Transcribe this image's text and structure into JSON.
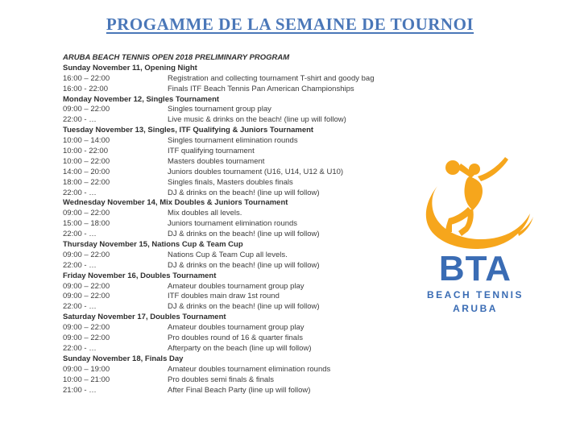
{
  "title": "PROGAMME DE LA SEMAINE DE TOURNOI",
  "schedule": {
    "program_heading": "ARUBA BEACH TENNIS OPEN 2018 PRELIMINARY PROGRAM",
    "days": [
      {
        "header": "Sunday November 11, Opening Night",
        "events": [
          {
            "time": "16:00 – 22:00",
            "description": "Registration and collecting tournament T-shirt and goody bag"
          },
          {
            "time": "16:00 - 22:00",
            "description": "Finals ITF Beach Tennis Pan American Championships"
          }
        ]
      },
      {
        "header": "Monday November 12, Singles Tournament",
        "events": [
          {
            "time": "09:00 – 22:00",
            "description": "Singles tournament group play"
          },
          {
            "time": "22:00 - …",
            "description": "Live music & drinks on the beach! (line up will follow)"
          }
        ]
      },
      {
        "header": "Tuesday November 13, Singles, ITF Qualifying & Juniors Tournament",
        "events": [
          {
            "time": "10:00 – 14:00",
            "description": "Singles tournament elimination rounds"
          },
          {
            "time": "10:00 - 22:00",
            "description": "ITF qualifying tournament"
          },
          {
            "time": "10:00 – 22:00",
            "description": "Masters doubles tournament"
          },
          {
            "time": "14:00 – 20:00",
            "description": "Juniors doubles tournament (U16, U14, U12 & U10)"
          },
          {
            "time": "18:00 – 22:00",
            "description": "Singles finals, Masters doubles finals"
          },
          {
            "time": "22:00 - …",
            "description": "DJ & drinks on the beach! (line up will follow)"
          }
        ]
      },
      {
        "header": "Wednesday November 14, Mix Doubles & Juniors Tournament",
        "events": [
          {
            "time": "09:00 – 22:00",
            "description": "Mix doubles all levels."
          },
          {
            "time": "15:00 – 18:00",
            "description": "Juniors tournament elimination rounds"
          },
          {
            "time": "22:00 - …",
            "description": "DJ & drinks on the beach! (line up will follow)"
          }
        ]
      },
      {
        "header": "Thursday November 15, Nations Cup & Team Cup",
        "events": [
          {
            "time": "09:00 – 22:00",
            "description": "Nations Cup & Team Cup all levels."
          },
          {
            "time": "22:00 - …",
            "description": "DJ & drinks on the beach! (line up will follow)"
          }
        ]
      },
      {
        "header": "Friday November 16, Doubles Tournament",
        "events": [
          {
            "time": "09:00 – 22:00",
            "description": "Amateur doubles tournament group play"
          },
          {
            "time": "09:00 – 22:00",
            "description": "ITF doubles main draw 1st round"
          },
          {
            "time": "22:00 - …",
            "description": "DJ & drinks on the beach! (line up will follow)"
          }
        ]
      },
      {
        "header": "Saturday November 17, Doubles Tournament",
        "events": [
          {
            "time": "09:00 – 22:00",
            "description": "Amateur doubles tournament group play"
          },
          {
            "time": "09:00 – 22:00",
            "description": "Pro doubles round of 16 & quarter finals"
          },
          {
            "time": "22:00 - …",
            "description": "Afterparty on the beach (line up will follow)"
          }
        ]
      },
      {
        "header": "Sunday November 18, Finals Day",
        "events": [
          {
            "time": "09:00 – 19:00",
            "description": "Amateur doubles tournament elimination rounds"
          },
          {
            "time": "10:00 – 21:00",
            "description": "Pro doubles semi finals & finals"
          },
          {
            "time": "21:00 - …",
            "description": "After Final Beach Party (line up will follow)"
          }
        ]
      }
    ]
  },
  "logo": {
    "acronym": "BTA",
    "line1": "BEACH TENNIS",
    "line2": "ARUBA",
    "player_icon": "beach-tennis-player-icon",
    "colors": {
      "orange": "#F6A61C",
      "blue": "#3A6CB4"
    }
  },
  "colors": {
    "title_blue": "#4A77B8",
    "body_text": "#3B3B3B",
    "background": "#FFFFFF"
  }
}
